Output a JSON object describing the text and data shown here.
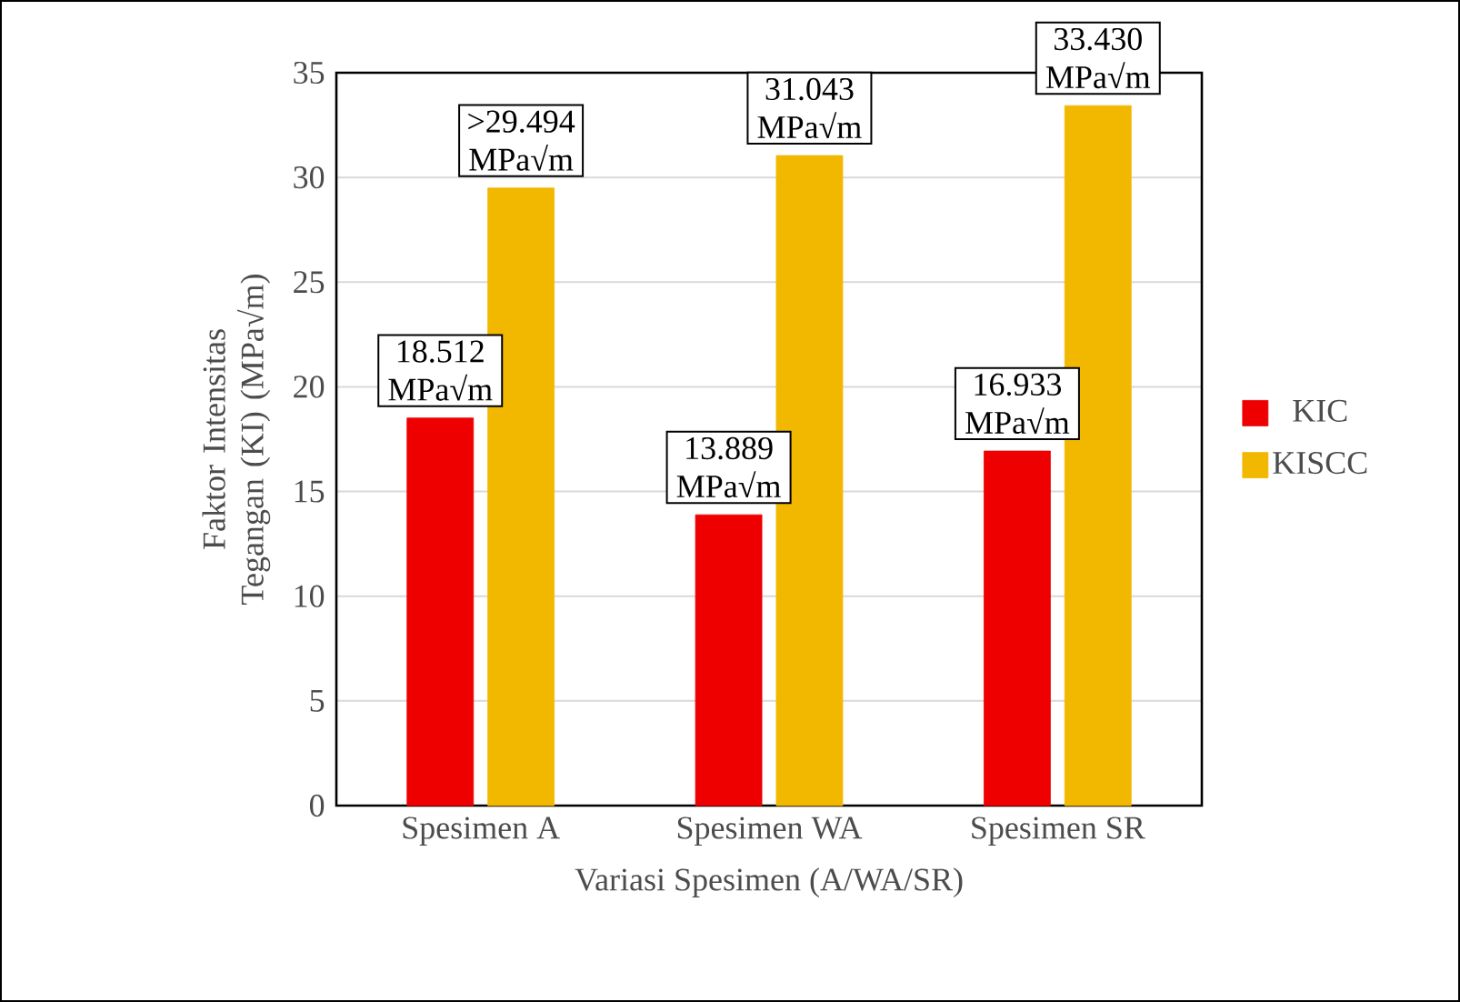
{
  "chart_data": {
    "type": "bar",
    "xlabel": "Variasi Spesimen (A/WA/SR)",
    "ylabel": "Faktor Intensitas Tegangan (KI) (MPa√m)",
    "categories": [
      "Spesimen A",
      "Spesimen WA",
      "Spesimen SR"
    ],
    "series": [
      {
        "name": "KIC",
        "color": "#ee0000",
        "values": [
          18.512,
          13.889,
          16.933
        ],
        "value_labels": [
          "18.512 MPa√m",
          "13.889 MPa√m",
          "16.933 MPa√m"
        ]
      },
      {
        "name": "KISCC",
        "color": "#f2b800",
        "values": [
          29.494,
          31.043,
          33.43
        ],
        "value_labels": [
          ">29.494 MPa√m",
          "31.043 MPa√m",
          "33.430 MPa√m"
        ]
      }
    ],
    "ylim": [
      0,
      35
    ],
    "yticks": [
      0,
      5,
      10,
      15,
      20,
      25,
      30,
      35
    ],
    "grid": "y",
    "legend": "right"
  }
}
